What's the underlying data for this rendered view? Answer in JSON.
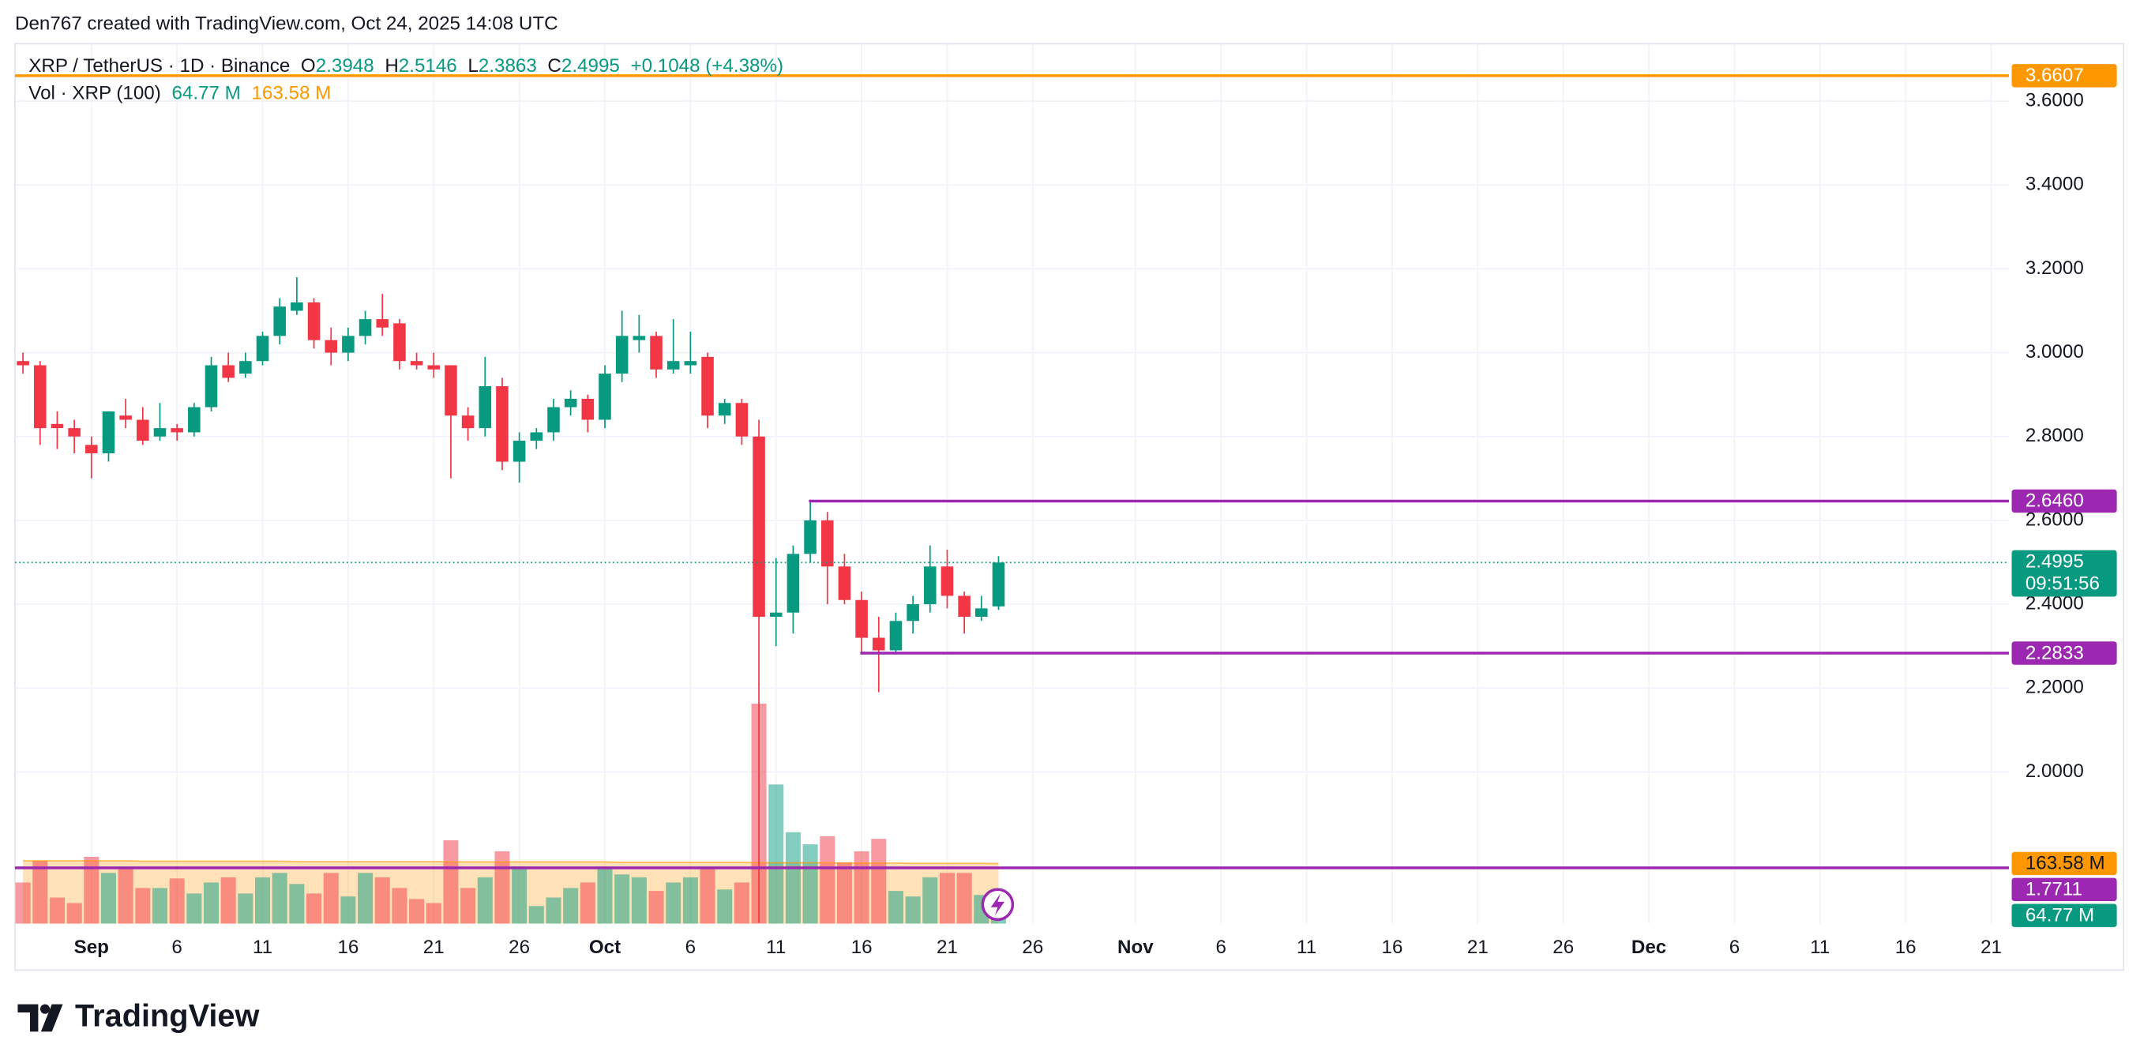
{
  "credit": "Den767 created with TradingView.com, Oct 24, 2025 14:08 UTC",
  "footer": {
    "brand": "TradingView"
  },
  "chart_data": {
    "type": "candlestick",
    "title": "XRP / TetherUS · 1D · Binance",
    "ohlc_letters": [
      "O",
      "H",
      "L",
      "C"
    ],
    "change": "+0.1048 (+4.38%)",
    "countdown": "09:51:56",
    "up_color": "#089981",
    "down_color": "#f23645",
    "grid": true,
    "x": [
      "2025-08-28",
      "2025-08-29",
      "2025-08-30",
      "2025-08-31",
      "2025-09-01",
      "2025-09-02",
      "2025-09-03",
      "2025-09-04",
      "2025-09-05",
      "2025-09-06",
      "2025-09-07",
      "2025-09-08",
      "2025-09-09",
      "2025-09-10",
      "2025-09-11",
      "2025-09-12",
      "2025-09-13",
      "2025-09-14",
      "2025-09-15",
      "2025-09-16",
      "2025-09-17",
      "2025-09-18",
      "2025-09-19",
      "2025-09-20",
      "2025-09-21",
      "2025-09-22",
      "2025-09-23",
      "2025-09-24",
      "2025-09-25",
      "2025-09-26",
      "2025-09-27",
      "2025-09-28",
      "2025-09-29",
      "2025-09-30",
      "2025-10-01",
      "2025-10-02",
      "2025-10-03",
      "2025-10-04",
      "2025-10-05",
      "2025-10-06",
      "2025-10-07",
      "2025-10-08",
      "2025-10-09",
      "2025-10-10",
      "2025-10-11",
      "2025-10-12",
      "2025-10-13",
      "2025-10-14",
      "2025-10-15",
      "2025-10-16",
      "2025-10-17",
      "2025-10-18",
      "2025-10-19",
      "2025-10-20",
      "2025-10-21",
      "2025-10-22",
      "2025-10-23",
      "2025-10-24"
    ],
    "open": [
      2.98,
      2.97,
      2.83,
      2.82,
      2.78,
      2.76,
      2.85,
      2.84,
      2.8,
      2.82,
      2.81,
      2.87,
      2.97,
      2.95,
      2.98,
      3.04,
      3.1,
      3.12,
      3.03,
      3.0,
      3.04,
      3.08,
      3.07,
      2.98,
      2.97,
      2.97,
      2.85,
      2.82,
      2.92,
      2.74,
      2.79,
      2.81,
      2.87,
      2.89,
      2.84,
      2.95,
      3.03,
      3.04,
      2.96,
      2.97,
      2.99,
      2.85,
      2.88,
      2.8,
      2.37,
      2.38,
      2.52,
      2.6,
      2.49,
      2.41,
      2.32,
      2.29,
      2.36,
      2.4,
      2.49,
      2.42,
      2.37,
      2.3948
    ],
    "high": [
      3.0,
      2.98,
      2.86,
      2.84,
      2.8,
      2.86,
      2.89,
      2.87,
      2.88,
      2.83,
      2.88,
      2.99,
      3.0,
      3.0,
      3.05,
      3.13,
      3.18,
      3.13,
      3.06,
      3.06,
      3.1,
      3.14,
      3.08,
      3.0,
      3.0,
      2.97,
      2.87,
      2.99,
      2.94,
      2.81,
      2.82,
      2.89,
      2.91,
      2.9,
      2.97,
      3.1,
      3.09,
      3.05,
      3.08,
      3.05,
      3.0,
      2.89,
      2.89,
      2.84,
      2.51,
      2.54,
      2.646,
      2.62,
      2.52,
      2.43,
      2.37,
      2.38,
      2.42,
      2.54,
      2.53,
      2.43,
      2.42,
      2.5146
    ],
    "low": [
      2.95,
      2.78,
      2.77,
      2.76,
      2.7,
      2.74,
      2.82,
      2.78,
      2.79,
      2.79,
      2.8,
      2.86,
      2.93,
      2.94,
      2.97,
      3.02,
      3.09,
      3.01,
      2.97,
      2.98,
      3.02,
      3.04,
      2.96,
      2.96,
      2.94,
      2.7,
      2.79,
      2.8,
      2.72,
      2.69,
      2.77,
      2.79,
      2.85,
      2.81,
      2.82,
      2.93,
      3.0,
      2.94,
      2.95,
      2.95,
      2.82,
      2.83,
      2.78,
      1.64,
      2.3,
      2.33,
      2.5,
      2.4,
      2.4,
      2.28,
      2.19,
      2.28,
      2.33,
      2.38,
      2.39,
      2.33,
      2.36,
      2.3863
    ],
    "close": [
      2.97,
      2.82,
      2.82,
      2.8,
      2.76,
      2.86,
      2.84,
      2.79,
      2.82,
      2.81,
      2.87,
      2.97,
      2.94,
      2.98,
      3.04,
      3.11,
      3.12,
      3.03,
      3.0,
      3.04,
      3.08,
      3.06,
      2.98,
      2.97,
      2.96,
      2.85,
      2.82,
      2.92,
      2.74,
      2.79,
      2.81,
      2.87,
      2.89,
      2.84,
      2.95,
      3.04,
      3.04,
      2.96,
      2.98,
      2.98,
      2.85,
      2.88,
      2.8,
      2.37,
      2.38,
      2.52,
      2.6,
      2.49,
      2.41,
      2.32,
      2.29,
      2.36,
      2.4,
      2.49,
      2.42,
      2.37,
      2.39,
      2.4995
    ],
    "xlim": [
      "2025-08-27",
      "2025-12-22"
    ],
    "xticks": [
      {
        "value": "2025-09-01",
        "label": "Sep"
      },
      {
        "value": "2025-09-06",
        "label": "6"
      },
      {
        "value": "2025-09-11",
        "label": "11"
      },
      {
        "value": "2025-09-16",
        "label": "16"
      },
      {
        "value": "2025-09-21",
        "label": "21"
      },
      {
        "value": "2025-09-26",
        "label": "26"
      },
      {
        "value": "2025-10-01",
        "label": "Oct"
      },
      {
        "value": "2025-10-06",
        "label": "6"
      },
      {
        "value": "2025-10-11",
        "label": "11"
      },
      {
        "value": "2025-10-16",
        "label": "16"
      },
      {
        "value": "2025-10-21",
        "label": "21"
      },
      {
        "value": "2025-10-26",
        "label": "26"
      },
      {
        "value": "2025-11-01",
        "label": "Nov"
      },
      {
        "value": "2025-11-06",
        "label": "6"
      },
      {
        "value": "2025-11-11",
        "label": "11"
      },
      {
        "value": "2025-11-16",
        "label": "16"
      },
      {
        "value": "2025-11-21",
        "label": "21"
      },
      {
        "value": "2025-11-26",
        "label": "26"
      },
      {
        "value": "2025-12-01",
        "label": "Dec"
      },
      {
        "value": "2025-12-06",
        "label": "6"
      },
      {
        "value": "2025-12-11",
        "label": "11"
      },
      {
        "value": "2025-12-16",
        "label": "16"
      },
      {
        "value": "2025-12-21",
        "label": "21"
      }
    ],
    "ylim": [
      1.638,
      3.737
    ],
    "yticks": [
      {
        "value": 2.0,
        "label": "2.0000"
      },
      {
        "value": 2.2,
        "label": "2.2000"
      },
      {
        "value": 2.4,
        "label": "2.4000"
      },
      {
        "value": 2.6,
        "label": "2.6000"
      },
      {
        "value": 2.8,
        "label": "2.8000"
      },
      {
        "value": 3.0,
        "label": "3.0000"
      },
      {
        "value": 3.2,
        "label": "3.2000"
      },
      {
        "value": 3.4,
        "label": "3.4000"
      },
      {
        "value": 3.6,
        "label": "3.6000"
      }
    ],
    "levels": [
      {
        "value": 3.6607,
        "label": "3.6607",
        "color": "#ff9800"
      },
      {
        "value": 2.646,
        "label": "2.6460",
        "color": "#9c27b0",
        "from": "2025-10-13"
      },
      {
        "value": 2.2833,
        "label": "2.2833",
        "color": "#9c27b0",
        "from": "2025-10-16"
      },
      {
        "value": 1.7711,
        "label": "1.7711",
        "color": "#9c27b0"
      }
    ],
    "volume": {
      "name": "Vol · XRP (100)",
      "readout": [
        "64.77 M",
        "163.58 M"
      ],
      "up_color": "rgba(8,153,129,0.5)",
      "down_color": "rgba(242,54,69,0.5)",
      "ma_color": "#ff9800",
      "values": [
        112,
        171,
        71,
        56,
        182,
        138,
        149,
        97,
        97,
        123,
        82,
        112,
        126,
        82,
        126,
        138,
        108,
        82,
        138,
        74,
        138,
        126,
        97,
        67,
        56,
        227,
        97,
        126,
        197,
        156,
        48,
        71,
        97,
        112,
        153,
        134,
        126,
        89,
        112,
        126,
        153,
        93,
        112,
        599,
        379,
        249,
        216,
        238,
        167,
        197,
        231,
        89,
        74,
        126,
        138,
        138,
        78,
        64.77
      ],
      "ma": [
        171,
        171,
        171,
        171,
        171,
        171,
        171,
        170,
        170,
        170,
        170,
        170,
        170,
        170,
        170,
        170,
        169,
        169,
        169,
        169,
        169,
        169,
        169,
        169,
        169,
        168,
        168,
        168,
        168,
        168,
        168,
        168,
        168,
        168,
        168,
        167,
        167,
        167,
        167,
        167,
        167,
        167,
        167,
        166,
        166,
        166,
        166,
        166,
        165,
        165,
        165,
        165,
        164,
        164,
        164,
        164,
        164,
        163.58
      ]
    }
  }
}
